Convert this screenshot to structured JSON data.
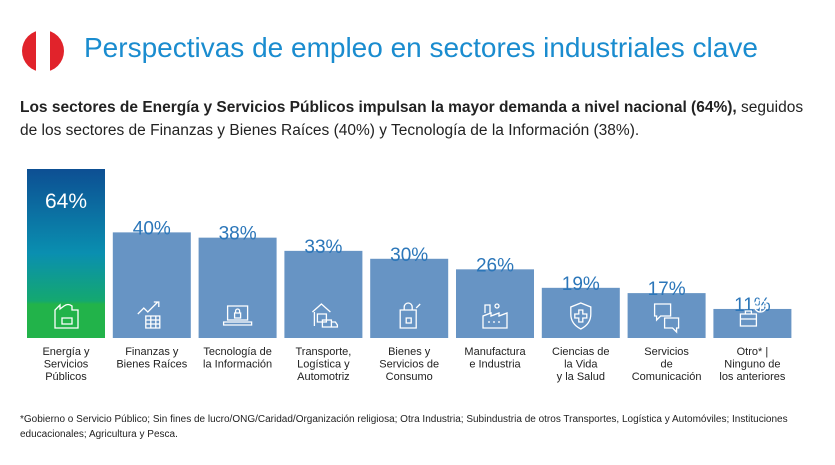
{
  "header": {
    "title": "Perspectivas de empleo en sectores industriales clave",
    "flag_colors": [
      "#e1232b",
      "#ffffff",
      "#e1232b"
    ]
  },
  "subtitle": {
    "bold": "Los sectores de Energía y Servicios Públicos impulsan la mayor demanda a nivel nacional (64%),",
    "normal": " seguidos de los sectores de Finanzas y Bienes Raíces (40%) y Tecnología de la Información (38%)."
  },
  "chart_data": {
    "type": "bar",
    "categories": [
      "Energía y\nServicios\nPúblicos",
      "Finanzas y\nBienes Raíces",
      "Tecnología de\nla Información",
      "Transporte,\nLogística y\nAutomotriz",
      "Bienes y\nServicios de\nConsumo",
      "Manufactura\ne Industria",
      "Ciencias de\nla Vida\ny la Salud",
      "Servicios\nde\nComunicación",
      "Otro* |\nNinguno de\nlos anteriores"
    ],
    "values": [
      64,
      40,
      38,
      33,
      30,
      26,
      19,
      17,
      11
    ],
    "data_labels": [
      "64%",
      "40%",
      "38%",
      "33%",
      "30%",
      "26%",
      "19%",
      "17%",
      "11%"
    ],
    "icons": [
      "factory-battery-icon",
      "finance-chart-icon",
      "laptop-lock-icon",
      "warehouse-truck-icon",
      "shopping-bag-icon",
      "factory-icon",
      "health-shield-icon",
      "chat-bubbles-icon",
      "briefcase-globe-icon"
    ],
    "colors": {
      "bar": "#6794c4",
      "highlight_top": "#0d4f93",
      "highlight_mid": "#0a8fb0",
      "highlight_bottom": "#22b34a",
      "label": "#2b76b9"
    },
    "ylim": [
      0,
      64
    ]
  },
  "footnote": "*Gobierno o Servicio Público; Sin fines de lucro/ONG/Caridad/Organización religiosa; Otra Industria; Subindustria de otros Transportes, Logística y Automóviles; Instituciones educacionales; Agricultura y Pesca."
}
